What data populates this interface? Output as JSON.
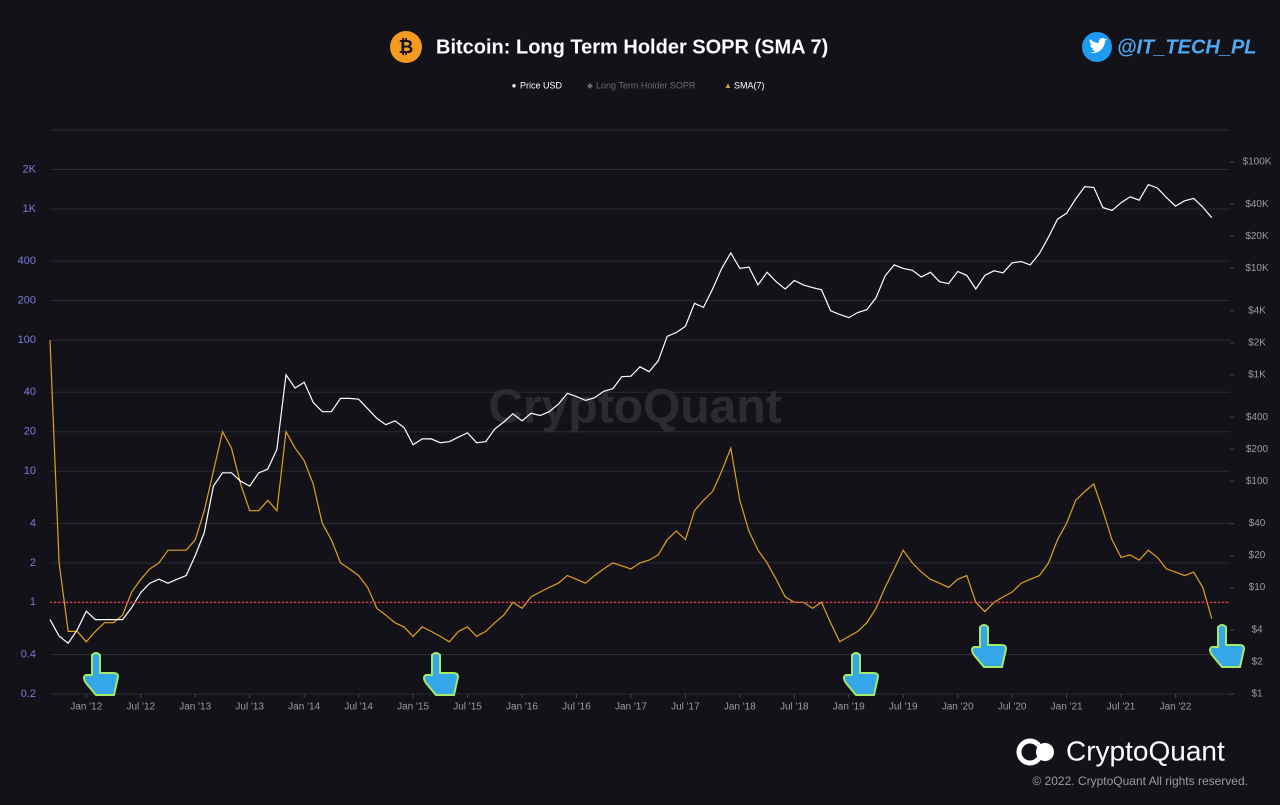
{
  "chart_data": {
    "type": "line",
    "title": "Bitcoin: Long Term Holder SOPR (SMA 7)",
    "title_icon": "₿",
    "handle": "@IT_TECH_PL",
    "watermark": "CryptoQuant",
    "brand": "CryptoQuant",
    "copyright": "© 2022. CryptoQuant All rights reserved.",
    "inactive_legend": {
      "name": "Long Term Holder SOPR",
      "color": "#6b6b78"
    },
    "reference_line": {
      "value": 1,
      "color": "#e03a3a"
    },
    "log_y": true,
    "log_y2": true,
    "grid": true,
    "xlim": [
      "2011-09",
      "2022-07"
    ],
    "ylim": [
      0.2,
      4000
    ],
    "y2lim": [
      1,
      200000
    ],
    "yticks": [
      0.2,
      0.4,
      1,
      2,
      4,
      10,
      20,
      40,
      100,
      200,
      400,
      {
        "value": 1000,
        "label": "1K"
      },
      {
        "value": 2000,
        "label": "2K"
      }
    ],
    "y2ticks": [
      {
        "value": 1,
        "label": "$1"
      },
      {
        "value": 2,
        "label": "$2"
      },
      {
        "value": 4,
        "label": "$4"
      },
      {
        "value": 10,
        "label": "$10"
      },
      {
        "value": 20,
        "label": "$20"
      },
      {
        "value": 40,
        "label": "$40"
      },
      {
        "value": 100,
        "label": "$100"
      },
      {
        "value": 200,
        "label": "$200"
      },
      {
        "value": 400,
        "label": "$400"
      },
      {
        "value": 1000,
        "label": "$1K"
      },
      {
        "value": 2000,
        "label": "$2K"
      },
      {
        "value": 4000,
        "label": "$4K"
      },
      {
        "value": 10000,
        "label": "$10K"
      },
      {
        "value": 20000,
        "label": "$20K"
      },
      {
        "value": 40000,
        "label": "$40K"
      },
      {
        "value": 100000,
        "label": "$100K"
      }
    ],
    "xticks": [
      {
        "value": "2012-01",
        "label": "Jan '12"
      },
      {
        "value": "2012-07",
        "label": "Jul '12"
      },
      {
        "value": "2013-01",
        "label": "Jan '13"
      },
      {
        "value": "2013-07",
        "label": "Jul '13"
      },
      {
        "value": "2014-01",
        "label": "Jan '14"
      },
      {
        "value": "2014-07",
        "label": "Jul '14"
      },
      {
        "value": "2015-01",
        "label": "Jan '15"
      },
      {
        "value": "2015-07",
        "label": "Jul '15"
      },
      {
        "value": "2016-01",
        "label": "Jan '16"
      },
      {
        "value": "2016-07",
        "label": "Jul '16"
      },
      {
        "value": "2017-01",
        "label": "Jan '17"
      },
      {
        "value": "2017-07",
        "label": "Jul '17"
      },
      {
        "value": "2018-01",
        "label": "Jan '18"
      },
      {
        "value": "2018-07",
        "label": "Jul '18"
      },
      {
        "value": "2019-01",
        "label": "Jan '19"
      },
      {
        "value": "2019-07",
        "label": "Jul '19"
      },
      {
        "value": "2020-01",
        "label": "Jan '20"
      },
      {
        "value": "2020-07",
        "label": "Jul '20"
      },
      {
        "value": "2021-01",
        "label": "Jan '21"
      },
      {
        "value": "2021-07",
        "label": "Jul '21"
      },
      {
        "value": "2022-01",
        "label": "Jan '22"
      }
    ],
    "x": [
      "2011-09",
      "2011-10",
      "2011-11",
      "2011-12",
      "2012-01",
      "2012-02",
      "2012-03",
      "2012-04",
      "2012-05",
      "2012-06",
      "2012-07",
      "2012-08",
      "2012-09",
      "2012-10",
      "2012-11",
      "2012-12",
      "2013-01",
      "2013-02",
      "2013-03",
      "2013-04",
      "2013-05",
      "2013-06",
      "2013-07",
      "2013-08",
      "2013-09",
      "2013-10",
      "2013-11",
      "2013-12",
      "2014-01",
      "2014-02",
      "2014-03",
      "2014-04",
      "2014-05",
      "2014-06",
      "2014-07",
      "2014-08",
      "2014-09",
      "2014-10",
      "2014-11",
      "2014-12",
      "2015-01",
      "2015-02",
      "2015-03",
      "2015-04",
      "2015-05",
      "2015-06",
      "2015-07",
      "2015-08",
      "2015-09",
      "2015-10",
      "2015-11",
      "2015-12",
      "2016-01",
      "2016-02",
      "2016-03",
      "2016-04",
      "2016-05",
      "2016-06",
      "2016-07",
      "2016-08",
      "2016-09",
      "2016-10",
      "2016-11",
      "2016-12",
      "2017-01",
      "2017-02",
      "2017-03",
      "2017-04",
      "2017-05",
      "2017-06",
      "2017-07",
      "2017-08",
      "2017-09",
      "2017-10",
      "2017-11",
      "2017-12",
      "2018-01",
      "2018-02",
      "2018-03",
      "2018-04",
      "2018-05",
      "2018-06",
      "2018-07",
      "2018-08",
      "2018-09",
      "2018-10",
      "2018-11",
      "2018-12",
      "2019-01",
      "2019-02",
      "2019-03",
      "2019-04",
      "2019-05",
      "2019-06",
      "2019-07",
      "2019-08",
      "2019-09",
      "2019-10",
      "2019-11",
      "2019-12",
      "2020-01",
      "2020-02",
      "2020-03",
      "2020-04",
      "2020-05",
      "2020-06",
      "2020-07",
      "2020-08",
      "2020-09",
      "2020-10",
      "2020-11",
      "2020-12",
      "2021-01",
      "2021-02",
      "2021-03",
      "2021-04",
      "2021-05",
      "2021-06",
      "2021-07",
      "2021-08",
      "2021-09",
      "2021-10",
      "2021-11",
      "2021-12",
      "2022-01",
      "2022-02",
      "2022-03",
      "2022-04",
      "2022-05"
    ],
    "series": [
      {
        "name": "Price USD",
        "color": "#ffffff",
        "axis": "y2",
        "marker": "●",
        "values": [
          5,
          3.5,
          3,
          4,
          6,
          5,
          5,
          5,
          5,
          6.5,
          9,
          11,
          12,
          11,
          12,
          13,
          20,
          33,
          90,
          120,
          120,
          100,
          90,
          120,
          130,
          200,
          1000,
          750,
          850,
          550,
          450,
          450,
          600,
          600,
          590,
          480,
          390,
          340,
          370,
          320,
          220,
          250,
          250,
          230,
          235,
          260,
          285,
          230,
          235,
          310,
          360,
          430,
          370,
          435,
          415,
          450,
          530,
          670,
          625,
          575,
          610,
          700,
          740,
          960,
          970,
          1190,
          1070,
          1350,
          2300,
          2500,
          2850,
          4700,
          4300,
          6400,
          10000,
          14000,
          10000,
          10300,
          7000,
          9200,
          7500,
          6400,
          7700,
          7000,
          6600,
          6300,
          4000,
          3700,
          3450,
          3850,
          4100,
          5300,
          8500,
          10800,
          10000,
          9600,
          8300,
          9200,
          7500,
          7200,
          9350,
          8600,
          6400,
          8600,
          9500,
          9100,
          11300,
          11600,
          10800,
          13800,
          19700,
          29000,
          33000,
          45000,
          58800,
          57700,
          37300,
          35000,
          41500,
          47100,
          43800,
          61300,
          57000,
          46300,
          38500,
          43200,
          45500,
          37700,
          30000
        ]
      },
      {
        "name": "SMA(7)",
        "color": "#e0a020",
        "axis": "y",
        "marker": "▲",
        "values": [
          100,
          2,
          0.6,
          0.6,
          0.5,
          0.6,
          0.7,
          0.7,
          0.8,
          1.2,
          1.5,
          1.8,
          2,
          2.5,
          2.5,
          2.5,
          3,
          5,
          10,
          20,
          15,
          8,
          5,
          5,
          6,
          5,
          20,
          15,
          12,
          8,
          4,
          3,
          2,
          1.8,
          1.6,
          1.3,
          0.9,
          0.8,
          0.7,
          0.65,
          0.55,
          0.65,
          0.6,
          0.55,
          0.5,
          0.6,
          0.65,
          0.55,
          0.6,
          0.7,
          0.8,
          1,
          0.9,
          1.1,
          1.2,
          1.3,
          1.4,
          1.6,
          1.5,
          1.4,
          1.6,
          1.8,
          2,
          1.9,
          1.8,
          2,
          2.1,
          2.3,
          3,
          3.5,
          3,
          5,
          6,
          7,
          10,
          15,
          6,
          3.5,
          2.5,
          2,
          1.5,
          1.1,
          1,
          1,
          0.9,
          1,
          0.7,
          0.5,
          0.55,
          0.6,
          0.7,
          0.9,
          1.3,
          1.8,
          2.5,
          2,
          1.7,
          1.5,
          1.4,
          1.3,
          1.5,
          1.6,
          1,
          0.85,
          1,
          1.1,
          1.2,
          1.4,
          1.5,
          1.6,
          2,
          3,
          4,
          6,
          7,
          8,
          5,
          3,
          2.2,
          2.3,
          2.1,
          2.5,
          2.2,
          1.8,
          1.7,
          1.6,
          1.7,
          1.3,
          0.75
        ]
      }
    ]
  }
}
